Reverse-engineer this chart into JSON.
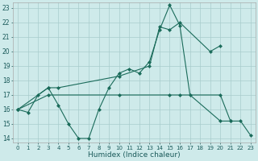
{
  "xlabel": "Humidex (Indice chaleur)",
  "bg_color": "#ceeaea",
  "grid_color": "#a8cccc",
  "line_color": "#1a6b5a",
  "xlim": [
    -0.5,
    23.5
  ],
  "ylim": [
    13.7,
    23.4
  ],
  "xticks": [
    0,
    1,
    2,
    3,
    4,
    5,
    6,
    7,
    8,
    9,
    10,
    11,
    12,
    13,
    14,
    15,
    16,
    17,
    18,
    19,
    20,
    21,
    22,
    23
  ],
  "yticks": [
    14,
    15,
    16,
    17,
    18,
    19,
    20,
    21,
    22,
    23
  ],
  "series1_x": [
    0,
    1,
    2,
    3,
    4,
    5,
    6,
    7,
    8,
    9,
    10,
    11,
    12,
    13,
    14,
    15,
    16,
    17,
    20,
    21
  ],
  "series1_y": [
    16,
    15.8,
    17,
    17.5,
    16.3,
    15,
    14,
    14,
    16,
    17.5,
    18.5,
    18.8,
    18.5,
    19.3,
    21.5,
    23.2,
    21.8,
    17.0,
    15.2,
    15.2
  ],
  "series2_x": [
    0,
    3,
    4,
    10,
    13,
    14,
    15,
    16,
    19,
    20
  ],
  "series2_y": [
    16,
    17.5,
    17.5,
    18.3,
    19.0,
    21.7,
    21.5,
    22.0,
    20.0,
    20.4
  ],
  "series3_x": [
    0,
    3,
    10,
    15,
    16,
    20,
    21,
    22,
    23
  ],
  "series3_y": [
    16,
    17,
    17,
    17,
    17,
    17,
    15.2,
    15.2,
    14.2
  ]
}
